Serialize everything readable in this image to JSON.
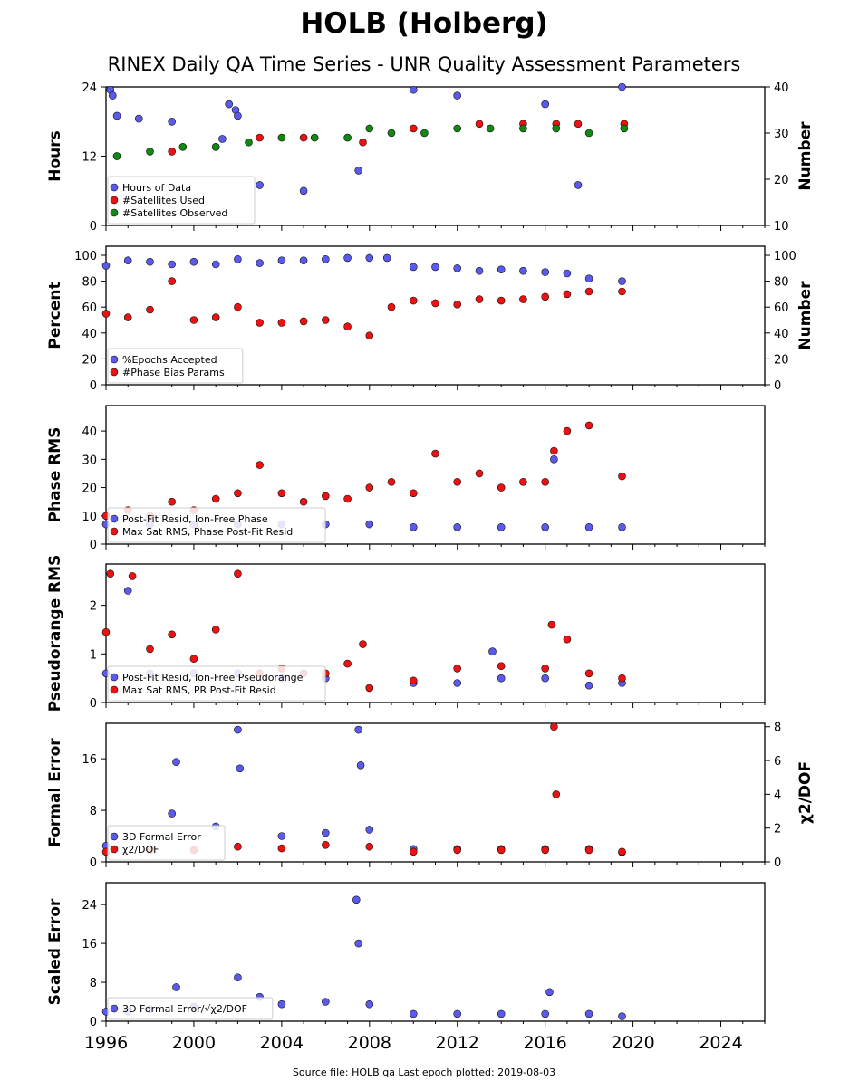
{
  "title": "HOLB (Holberg)",
  "subtitle": "RINEX Daily QA Time Series - UNR Quality Assessment Parameters",
  "footer": "Source file: HOLB.qa Last epoch plotted: 2019-08-03",
  "colors": {
    "blue": "#5a5aee",
    "red": "#ee1111",
    "green": "#118811",
    "darkred": "#3a0000"
  },
  "chart_data": [
    {
      "type": "scatter",
      "ylabel": "Hours",
      "y2label": "Number",
      "ylim": [
        0,
        24
      ],
      "y2lim": [
        10,
        40
      ],
      "yticks": [
        0,
        12,
        24
      ],
      "y2ticks": [
        10,
        20,
        30,
        40
      ],
      "xlim": [
        1996,
        2026
      ],
      "legend": "lower-left",
      "series": [
        {
          "name": "Hours of Data",
          "color": "blue",
          "axis": "left",
          "x": [
            1996.2,
            1996.3,
            1996.5,
            1997.5,
            1999.0,
            2001.3,
            2001.6,
            2001.9,
            2002.0,
            2003.0,
            2005.0,
            2007.5,
            2010.0,
            2012.0,
            2016.0,
            2017.5,
            2019.5
          ],
          "y": [
            23.5,
            22.5,
            19.0,
            18.5,
            18.0,
            15.0,
            21.0,
            20.0,
            19.0,
            7.0,
            6.0,
            9.5,
            23.5,
            22.5,
            21.0,
            7.0,
            24.0
          ]
        },
        {
          "name": "#Satellites Used",
          "color": "red",
          "axis": "right",
          "x": [
            1996.5,
            1999.0,
            2001.0,
            2003.0,
            2005.0,
            2007.7,
            2010.0,
            2013.0,
            2015.0,
            2016.5,
            2017.5,
            2019.6
          ],
          "y": [
            25,
            26,
            27,
            29,
            29,
            28,
            31,
            32,
            32,
            32,
            32,
            32
          ]
        },
        {
          "name": "#Satellites Observed",
          "color": "green",
          "axis": "right",
          "x": [
            1996.5,
            1998.0,
            1999.5,
            2001.0,
            2002.5,
            2004.0,
            2005.5,
            2007.0,
            2008.0,
            2009.0,
            2010.5,
            2012.0,
            2013.5,
            2015.0,
            2016.5,
            2018.0,
            2019.6
          ],
          "y": [
            25,
            26,
            27,
            27,
            28,
            29,
            29,
            29,
            31,
            30,
            30,
            31,
            31,
            31,
            31,
            30,
            31
          ]
        }
      ]
    },
    {
      "type": "scatter",
      "ylabel": "Percent",
      "y2label": "Number",
      "ylim": [
        0,
        107
      ],
      "y2lim": [
        0,
        107
      ],
      "yticks": [
        0,
        20,
        40,
        60,
        80,
        100
      ],
      "y2ticks": [
        0,
        20,
        40,
        60,
        80,
        100
      ],
      "xlim": [
        1996,
        2026
      ],
      "legend": "lower-left",
      "series": [
        {
          "name": "%Epochs Accepted",
          "color": "blue",
          "axis": "left",
          "x": [
            1996.0,
            1997.0,
            1998.0,
            1999.0,
            2000.0,
            2001.0,
            2002.0,
            2003.0,
            2004.0,
            2005.0,
            2006.0,
            2007.0,
            2008.0,
            2008.8,
            2010.0,
            2011.0,
            2012.0,
            2013.0,
            2014.0,
            2015.0,
            2016.0,
            2017.0,
            2018.0,
            2019.5
          ],
          "y": [
            92,
            96,
            95,
            93,
            95,
            93,
            97,
            94,
            96,
            96,
            97,
            98,
            98,
            98,
            91,
            91,
            90,
            88,
            89,
            88,
            87,
            86,
            82,
            80
          ]
        },
        {
          "name": "#Phase Bias Params",
          "color": "red",
          "axis": "right",
          "x": [
            1996.0,
            1997.0,
            1998.0,
            1999.0,
            2000.0,
            2001.0,
            2002.0,
            2003.0,
            2004.0,
            2005.0,
            2006.0,
            2007.0,
            2008.0,
            2009.0,
            2010.0,
            2011.0,
            2012.0,
            2013.0,
            2014.0,
            2015.0,
            2016.0,
            2017.0,
            2018.0,
            2019.5
          ],
          "y": [
            55,
            52,
            58,
            80,
            50,
            52,
            60,
            48,
            48,
            49,
            50,
            45,
            38,
            60,
            65,
            63,
            62,
            66,
            65,
            66,
            68,
            70,
            72,
            72
          ]
        }
      ]
    },
    {
      "type": "scatter",
      "ylabel": "Phase RMS",
      "ylim": [
        0,
        49
      ],
      "yticks": [
        0,
        10,
        20,
        30,
        40
      ],
      "xlim": [
        1996,
        2026
      ],
      "legend": "lower-left",
      "series": [
        {
          "name": "Post-Fit Resid, Ion-Free Phase",
          "color": "blue",
          "axis": "left",
          "x": [
            1996.0,
            1998.0,
            2000.0,
            2002.0,
            2004.0,
            2006.0,
            2008.0,
            2010.0,
            2012.0,
            2014.0,
            2016.0,
            2016.4,
            2018.0,
            2019.5
          ],
          "y": [
            7,
            7,
            7,
            7,
            7,
            7,
            7,
            6,
            6,
            6,
            6,
            30,
            6,
            6
          ]
        },
        {
          "name": "Max Sat RMS, Phase Post-Fit Resid",
          "color": "red",
          "axis": "left",
          "x": [
            1996.0,
            1997.0,
            1998.0,
            1999.0,
            2000.0,
            2001.0,
            2002.0,
            2003.0,
            2004.0,
            2005.0,
            2006.0,
            2007.0,
            2008.0,
            2009.0,
            2010.0,
            2011.0,
            2012.0,
            2013.0,
            2014.0,
            2015.0,
            2016.0,
            2016.4,
            2017.0,
            2018.0,
            2019.5
          ],
          "y": [
            10,
            12,
            10,
            15,
            12,
            16,
            18,
            28,
            18,
            15,
            17,
            16,
            20,
            22,
            18,
            32,
            22,
            25,
            20,
            22,
            22,
            33,
            40,
            42,
            24
          ]
        }
      ]
    },
    {
      "type": "scatter",
      "ylabel": "Pseudorange RMS",
      "ylim": [
        0,
        2.85
      ],
      "yticks": [
        0,
        1,
        2
      ],
      "xlim": [
        1996,
        2026
      ],
      "legend": "lower-left",
      "series": [
        {
          "name": "Post-Fit Resid, Ion-Free Pseudorange",
          "color": "blue",
          "axis": "left",
          "x": [
            1996.0,
            1997.0,
            1998.0,
            2000.0,
            2002.0,
            2004.0,
            2006.0,
            2008.0,
            2010.0,
            2012.0,
            2013.6,
            2014.0,
            2016.0,
            2018.0,
            2019.5
          ],
          "y": [
            0.6,
            2.3,
            0.6,
            0.6,
            0.6,
            0.5,
            0.5,
            0.3,
            0.4,
            0.4,
            1.05,
            0.5,
            0.5,
            0.35,
            0.4
          ]
        },
        {
          "name": "Max Sat RMS, PR Post-Fit Resid",
          "color": "red",
          "axis": "left",
          "x": [
            1996.0,
            1996.2,
            1997.2,
            1998.0,
            1999.0,
            2000.0,
            2001.0,
            2002.0,
            2003.0,
            2004.0,
            2005.0,
            2006.0,
            2007.0,
            2007.7,
            2008.0,
            2010.0,
            2012.0,
            2014.0,
            2016.0,
            2016.3,
            2017.0,
            2018.0,
            2019.5
          ],
          "y": [
            1.45,
            2.65,
            2.6,
            1.1,
            1.4,
            0.9,
            1.5,
            2.65,
            0.6,
            0.7,
            0.6,
            0.6,
            0.8,
            1.2,
            0.3,
            0.45,
            0.7,
            0.75,
            0.7,
            1.6,
            1.3,
            0.6,
            0.5
          ]
        }
      ]
    },
    {
      "type": "scatter",
      "ylabel": "Formal Error",
      "y2label": "χ2/DOF",
      "ylim": [
        0,
        21.5
      ],
      "y2lim": [
        0,
        8.2
      ],
      "yticks": [
        0,
        8,
        16
      ],
      "y2ticks": [
        0,
        2,
        4,
        6,
        8
      ],
      "xlim": [
        1996,
        2026
      ],
      "legend": "lower-left",
      "series": [
        {
          "name": "3D Formal Error",
          "color": "blue",
          "axis": "left",
          "x": [
            1996.0,
            1998.0,
            1999.0,
            1999.2,
            2001.0,
            2002.0,
            2002.1,
            2004.0,
            2006.0,
            2007.5,
            2007.6,
            2008.0,
            2010.0,
            2012.0,
            2014.0,
            2016.0,
            2018.0,
            2019.5
          ],
          "y": [
            2.5,
            2.0,
            7.5,
            15.5,
            5.5,
            20.5,
            14.5,
            4.0,
            4.5,
            20.5,
            15.0,
            5.0,
            2.0,
            2.0,
            2.0,
            2.0,
            2.0,
            1.5
          ]
        },
        {
          "name": "χ2/DOF",
          "color": "red",
          "axis": "right",
          "x": [
            1996.0,
            1998.0,
            2000.0,
            2002.0,
            2004.0,
            2006.0,
            2008.0,
            2010.0,
            2012.0,
            2014.0,
            2016.0,
            2016.4,
            2016.5,
            2018.0,
            2019.5
          ],
          "y": [
            0.6,
            0.7,
            0.7,
            0.9,
            0.8,
            1.0,
            0.9,
            0.6,
            0.7,
            0.7,
            0.7,
            8.0,
            4.0,
            0.7,
            0.6
          ]
        }
      ]
    },
    {
      "type": "scatter",
      "ylabel": "Scaled Error",
      "ylim": [
        0,
        28.5
      ],
      "yticks": [
        0,
        8,
        16,
        24
      ],
      "xlim": [
        1996,
        2026
      ],
      "xticks": [
        1996,
        2000,
        2004,
        2008,
        2012,
        2016,
        2020,
        2024
      ],
      "legend": "lower-left",
      "series": [
        {
          "name": "3D Formal Error/√χ2/DOF",
          "color": "blue",
          "axis": "left",
          "x": [
            1996.0,
            1997.0,
            1998.0,
            1999.2,
            2000.0,
            2002.0,
            2003.0,
            2004.0,
            2006.0,
            2007.4,
            2007.5,
            2008.0,
            2010.0,
            2012.0,
            2014.0,
            2016.0,
            2016.2,
            2018.0,
            2019.5
          ],
          "y": [
            2.0,
            2.0,
            2.5,
            7.0,
            3.0,
            9.0,
            5.0,
            3.5,
            4.0,
            25.0,
            16.0,
            3.5,
            1.5,
            1.5,
            1.5,
            1.5,
            6.0,
            1.5,
            1.0
          ]
        }
      ]
    }
  ]
}
